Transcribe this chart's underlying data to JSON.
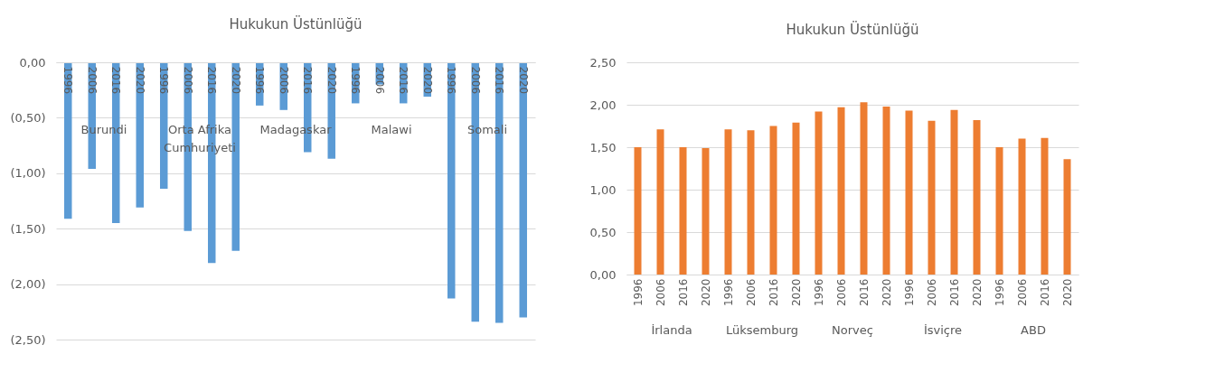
{
  "chart_data": [
    {
      "type": "bar",
      "title": "Hukukun Üstünlüğü",
      "categories": [
        "1996",
        "2006",
        "2016",
        "2020",
        "1996",
        "2006",
        "2016",
        "2020",
        "1996",
        "2006",
        "2016",
        "2020",
        "1996",
        "2006",
        "2016",
        "2020",
        "1996",
        "2006",
        "2016",
        "2020"
      ],
      "annotations": [
        "Burundi",
        "Orta Afrika Cumhuriyeti",
        "Madagaskar",
        "Malawi",
        "Somali"
      ],
      "values": [
        -1.41,
        -0.96,
        -1.45,
        -1.31,
        -1.14,
        -1.52,
        -1.81,
        -1.7,
        -0.39,
        -0.43,
        -0.81,
        -0.87,
        -0.37,
        -0.2,
        -0.37,
        -0.31,
        -2.13,
        -2.34,
        -2.35,
        -2.3
      ],
      "color": "#5b9bd5",
      "ylim": [
        -2.5,
        0
      ],
      "yticks": [
        {
          "value": 0,
          "label": "0,00"
        },
        {
          "value": -0.5,
          "label": "(0,50)"
        },
        {
          "value": -1,
          "label": "(1,00)"
        },
        {
          "value": -1.5,
          "label": "(1,50)"
        },
        {
          "value": -2,
          "label": "(2,00)"
        },
        {
          "value": -2.5,
          "label": "(2,50)"
        }
      ],
      "grid": "y"
    },
    {
      "type": "bar",
      "title": "Hukukun Üstünlüğü",
      "categories": [
        "1996",
        "2006",
        "2016",
        "2020",
        "1996",
        "2006",
        "2016",
        "2020",
        "1996",
        "2006",
        "2016",
        "2020",
        "1996",
        "2006",
        "2016",
        "2020",
        "1996",
        "2006",
        "2016",
        "2020"
      ],
      "annotations": [
        "İrlanda",
        "Lüksemburg",
        "Norveç",
        "İsviçre",
        "ABD"
      ],
      "values": [
        1.5,
        1.71,
        1.5,
        1.49,
        1.71,
        1.7,
        1.75,
        1.79,
        1.92,
        1.97,
        2.03,
        1.98,
        1.93,
        1.81,
        1.94,
        1.82,
        1.5,
        1.6,
        1.61,
        1.36
      ],
      "color": "#ed7d31",
      "ylim": [
        0,
        2.5
      ],
      "yticks": [
        {
          "value": 0,
          "label": "0,00"
        },
        {
          "value": 0.5,
          "label": "0,50"
        },
        {
          "value": 1,
          "label": "1,00"
        },
        {
          "value": 1.5,
          "label": "1,50"
        },
        {
          "value": 2,
          "label": "2,00"
        },
        {
          "value": 2.5,
          "label": "2,50"
        }
      ],
      "grid": "y"
    }
  ]
}
